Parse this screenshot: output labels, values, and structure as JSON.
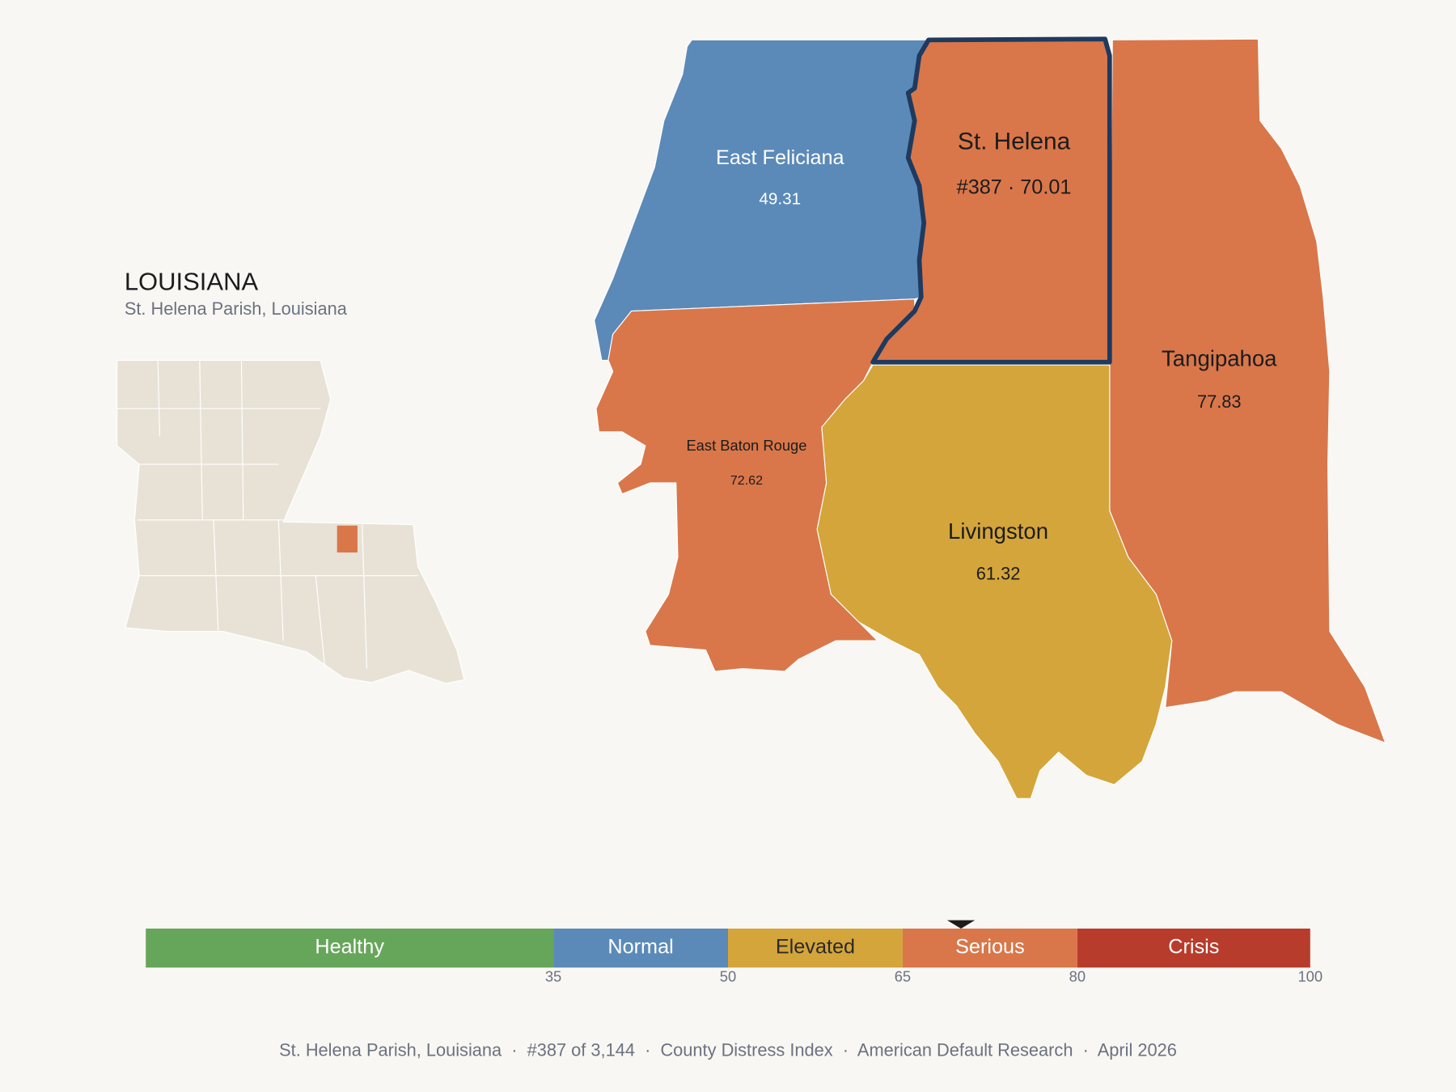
{
  "header": {
    "title": "LOUISIANA",
    "subtitle": "St. Helena Parish, Louisiana"
  },
  "map": {
    "parishes": [
      {
        "name": "East Feliciana",
        "value": 49.31
      },
      {
        "name": "St. Helena",
        "value": 70.01,
        "value_label": "#387 · 70.01"
      },
      {
        "name": "Tangipahoa",
        "value": 77.83
      },
      {
        "name": "East Baton Rouge",
        "value": 72.62
      },
      {
        "name": "Livingston",
        "value": 61.32
      }
    ]
  },
  "scale": {
    "range": [
      0,
      100
    ],
    "ticks": [
      35,
      50,
      65,
      80,
      100
    ],
    "bands": [
      {
        "name": "Healthy",
        "color": "#66a65a",
        "text_color": "#ffffff"
      },
      {
        "name": "Normal",
        "color": "#5b8ab8",
        "text_color": "#ffffff"
      },
      {
        "name": "Elevated",
        "color": "#d4a53a",
        "text_color": "#2a2a2a"
      },
      {
        "name": "Serious",
        "color": "#d9774a",
        "text_color": "#ffffff"
      },
      {
        "name": "Crisis",
        "color": "#b83c2c",
        "text_color": "#ffffff"
      }
    ]
  },
  "footer": "St. Helena Parish, Louisiana  ·  #387 of 3,144  ·  County Distress Index  ·  American Default Research  ·  April 2026"
}
